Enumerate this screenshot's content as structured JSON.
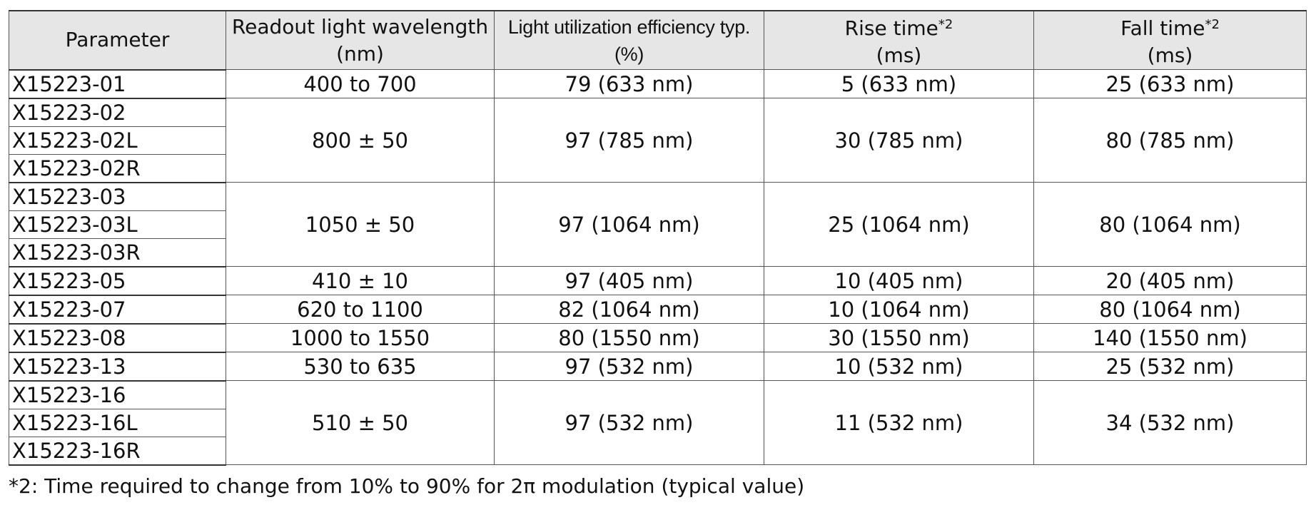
{
  "table": {
    "headers": [
      {
        "line1": "Parameter",
        "line2": "",
        "sup": ""
      },
      {
        "line1": "Readout light wavelength",
        "line2": "(nm)",
        "sup": ""
      },
      {
        "line1": "Light utilization efficiency typ.",
        "line2": "(%)",
        "sup": ""
      },
      {
        "line1": "Rise time",
        "line2": "(ms)",
        "sup": "*2"
      },
      {
        "line1": "Fall time",
        "line2": "(ms)",
        "sup": "*2"
      }
    ],
    "groups": [
      {
        "types": [
          "X15223-01"
        ],
        "wavelength": "400 to 700",
        "efficiency": "79 (633 nm)",
        "rise": "5 (633 nm)",
        "fall": "25 (633 nm)"
      },
      {
        "types": [
          "X15223-02",
          "X15223-02L",
          "X15223-02R"
        ],
        "wavelength": "800 ± 50",
        "efficiency": "97 (785 nm)",
        "rise": "30 (785 nm)",
        "fall": "80 (785 nm)"
      },
      {
        "types": [
          "X15223-03",
          "X15223-03L",
          "X15223-03R"
        ],
        "wavelength": "1050 ± 50",
        "efficiency": "97 (1064 nm)",
        "rise": "25 (1064 nm)",
        "fall": "80 (1064 nm)"
      },
      {
        "types": [
          "X15223-05"
        ],
        "wavelength": "410 ± 10",
        "efficiency": "97 (405 nm)",
        "rise": "10 (405 nm)",
        "fall": "20 (405 nm)"
      },
      {
        "types": [
          "X15223-07"
        ],
        "wavelength": "620 to 1100",
        "efficiency": "82 (1064 nm)",
        "rise": "10 (1064 nm)",
        "fall": "80 (1064 nm)"
      },
      {
        "types": [
          "X15223-08"
        ],
        "wavelength": "1000 to 1550",
        "efficiency": "80 (1550 nm)",
        "rise": "30 (1550 nm)",
        "fall": "140 (1550 nm)"
      },
      {
        "types": [
          "X15223-13"
        ],
        "wavelength": "530 to 635",
        "efficiency": "97 (532 nm)",
        "rise": "10 (532 nm)",
        "fall": "25 (532 nm)"
      },
      {
        "types": [
          "X15223-16",
          "X15223-16L",
          "X15223-16R"
        ],
        "wavelength": "510 ± 50",
        "efficiency": "97 (532 nm)",
        "rise": "11 (532 nm)",
        "fall": "34 (532 nm)"
      }
    ]
  },
  "footnote": "*2: Time required to change from 10% to 90% for 2π modulation (typical value)",
  "colors": {
    "header_bg": "#e6e6e6",
    "rule": "#555555",
    "text": "#111111"
  }
}
